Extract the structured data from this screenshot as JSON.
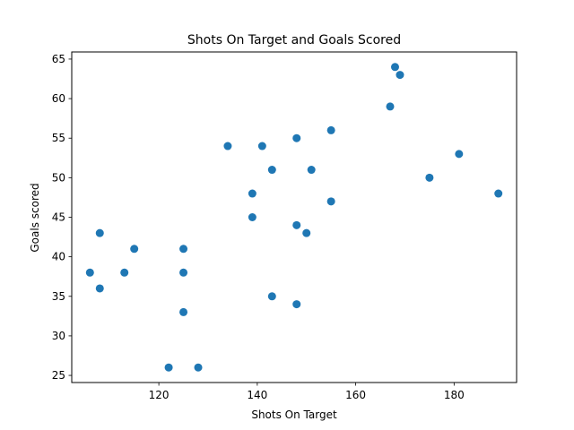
{
  "chart_data": {
    "type": "scatter",
    "title": "Shots On Target and Goals Scored",
    "xlabel": "Shots On Target",
    "ylabel": "Goals scored",
    "xlim": [
      102.3,
      192.7
    ],
    "ylim": [
      24.1,
      65.9
    ],
    "xticks": [
      120,
      140,
      160,
      180
    ],
    "yticks": [
      25,
      30,
      35,
      40,
      45,
      50,
      55,
      60,
      65
    ],
    "grid": false,
    "marker_color": "#1f77b4",
    "points": [
      {
        "x": 106,
        "y": 38
      },
      {
        "x": 108,
        "y": 43
      },
      {
        "x": 108,
        "y": 36
      },
      {
        "x": 113,
        "y": 38
      },
      {
        "x": 115,
        "y": 41
      },
      {
        "x": 122,
        "y": 26
      },
      {
        "x": 125,
        "y": 41
      },
      {
        "x": 125,
        "y": 38
      },
      {
        "x": 125,
        "y": 33
      },
      {
        "x": 128,
        "y": 26
      },
      {
        "x": 134,
        "y": 54
      },
      {
        "x": 139,
        "y": 48
      },
      {
        "x": 139,
        "y": 45
      },
      {
        "x": 141,
        "y": 54
      },
      {
        "x": 143,
        "y": 51
      },
      {
        "x": 143,
        "y": 35
      },
      {
        "x": 148,
        "y": 55
      },
      {
        "x": 148,
        "y": 44
      },
      {
        "x": 148,
        "y": 34
      },
      {
        "x": 150,
        "y": 43
      },
      {
        "x": 151,
        "y": 51
      },
      {
        "x": 155,
        "y": 56
      },
      {
        "x": 155,
        "y": 47
      },
      {
        "x": 167,
        "y": 59
      },
      {
        "x": 168,
        "y": 64
      },
      {
        "x": 169,
        "y": 63
      },
      {
        "x": 175,
        "y": 50
      },
      {
        "x": 181,
        "y": 53
      },
      {
        "x": 189,
        "y": 48
      }
    ]
  }
}
